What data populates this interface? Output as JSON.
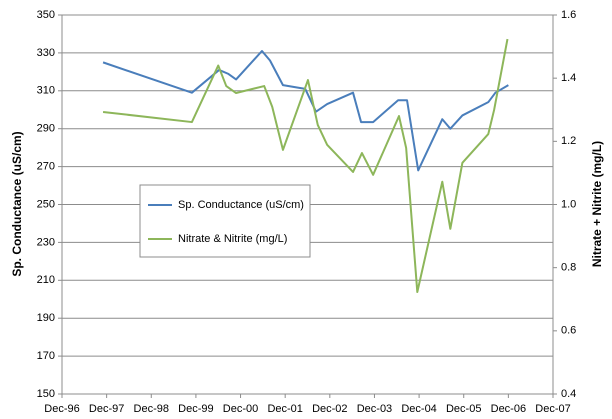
{
  "chart_data": {
    "type": "line",
    "y_label": "Sp. Conductance (uS/cm)",
    "y2_label": "Nitrate + Nitrite (mg/L)",
    "xlim": [
      1996.92,
      2007.92
    ],
    "xticks": [
      {
        "value": 1996.92,
        "label": "Dec-96"
      },
      {
        "value": 1997.92,
        "label": "Dec-97"
      },
      {
        "value": 1998.92,
        "label": "Dec-98"
      },
      {
        "value": 1999.92,
        "label": "Dec-99"
      },
      {
        "value": 2000.92,
        "label": "Dec-00"
      },
      {
        "value": 2001.92,
        "label": "Dec-01"
      },
      {
        "value": 2002.92,
        "label": "Dec-02"
      },
      {
        "value": 2003.92,
        "label": "Dec-03"
      },
      {
        "value": 2004.92,
        "label": "Dec-04"
      },
      {
        "value": 2005.92,
        "label": "Dec-05"
      },
      {
        "value": 2006.92,
        "label": "Dec-06"
      },
      {
        "value": 2007.92,
        "label": "Dec-07"
      }
    ],
    "ylim": [
      150,
      350
    ],
    "yticks": [
      150,
      170,
      190,
      210,
      230,
      250,
      270,
      290,
      310,
      330,
      350
    ],
    "y2lim": [
      0.4,
      1.6
    ],
    "y2ticks": [
      0.4,
      0.6,
      0.8,
      {
        "value": 1,
        "label": "1.0"
      },
      1.2,
      1.4,
      1.6
    ],
    "grid": true,
    "legend": "left",
    "series": [
      {
        "name": "Sp. Conductance (uS/cm)",
        "color": "#4a7ebb",
        "x": [
          1997.84,
          1999.83,
          2000.44,
          2000.64,
          2000.82,
          2001.4,
          2001.58,
          2001.87,
          2002.37,
          2002.61,
          2002.86,
          2003.44,
          2003.62,
          2003.89,
          2004.45,
          2004.65,
          2004.9,
          2005.44,
          2005.62,
          2005.89,
          2006.47,
          2006.63,
          2006.92
        ],
        "values": [
          325,
          309,
          321,
          319,
          316,
          331,
          326,
          313,
          311,
          299,
          303,
          309,
          293.5,
          293.5,
          305,
          305,
          268,
          295,
          290,
          297,
          304,
          309,
          313
        ]
      },
      {
        "name": "Nitrate & Nitrite (mg/L)",
        "color": "#8db65a",
        "axis": "y2",
        "x": [
          1997.84,
          1999.83,
          2000.42,
          2000.6,
          2000.82,
          2001.45,
          2001.63,
          2001.87,
          2002.43,
          2002.65,
          2002.86,
          2003.44,
          2003.64,
          2003.89,
          2004.47,
          2004.63,
          2004.88,
          2005.44,
          2005.62,
          2005.89,
          2006.47,
          2006.6,
          2006.9
        ],
        "values": [
          1.293,
          1.261,
          1.44,
          1.375,
          1.353,
          1.375,
          1.309,
          1.173,
          1.394,
          1.252,
          1.189,
          1.103,
          1.163,
          1.094,
          1.28,
          1.179,
          0.723,
          1.072,
          0.923,
          1.132,
          1.223,
          1.299,
          1.524
        ]
      }
    ]
  }
}
